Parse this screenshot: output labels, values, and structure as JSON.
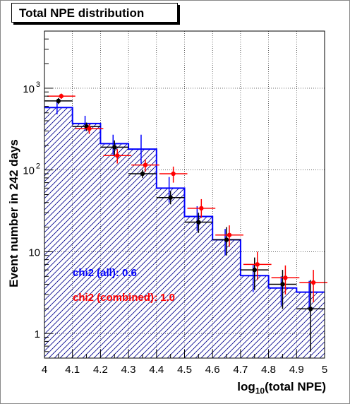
{
  "chart_data": {
    "type": "histogram",
    "title": "Total NPE distribution",
    "xlabel_prefix": "log",
    "xlabel_sub": "10",
    "xlabel_suffix": "(total NPE)",
    "ylabel": "Event number in 242 days",
    "xlim": [
      4,
      5
    ],
    "ylim": [
      0.5,
      5000
    ],
    "yscale": "log",
    "grid": true,
    "bin_edges": [
      4.0,
      4.1,
      4.2,
      4.3,
      4.4,
      4.5,
      4.6,
      4.7,
      4.8,
      4.9,
      5.0
    ],
    "xtick_labels": [
      "4",
      "4.1",
      "4.2",
      "4.3",
      "4.4",
      "4.5",
      "4.6",
      "4.7",
      "4.8",
      "4.9",
      "5"
    ],
    "ytick_labels": [
      {
        "value": 1,
        "label": "1"
      },
      {
        "value": 10,
        "label": "10"
      },
      {
        "value": 100,
        "label": "10",
        "exp": "2"
      },
      {
        "value": 1000,
        "label": "10",
        "exp": "3"
      }
    ],
    "series": [
      {
        "style": "hatched-fill",
        "color": "#00008b",
        "values": [
          580,
          370,
          210,
          180,
          60,
          27,
          14,
          5.1,
          3.6,
          3.2
        ]
      },
      {
        "style": "blue-step",
        "color": "#0000ff",
        "values": [
          580,
          370,
          210,
          180,
          60,
          27,
          14,
          5.1,
          3.6,
          3.2
        ],
        "yerr_low": [
          480,
          300,
          150,
          120,
          40,
          18,
          9,
          3.2,
          2.2,
          2.0
        ],
        "yerr_high": [
          680,
          460,
          270,
          270,
          82,
          36,
          19,
          7.0,
          5.0,
          4.4
        ],
        "err_x": [
          4.045,
          4.145,
          4.245,
          4.345,
          4.445,
          4.545,
          4.645,
          4.745,
          4.845,
          4.945
        ]
      },
      {
        "style": "points",
        "color": "#000000",
        "x": [
          4.05,
          4.15,
          4.25,
          4.35,
          4.45,
          4.55,
          4.65,
          4.75,
          4.85,
          4.95
        ],
        "values": [
          700,
          340,
          190,
          90,
          46,
          23,
          14,
          6,
          4,
          2
        ],
        "yerr_low": [
          640,
          300,
          150,
          80,
          38,
          17,
          9,
          3.4,
          2.0,
          0.6
        ],
        "yerr_high": [
          760,
          380,
          230,
          100,
          55,
          30,
          20,
          8.5,
          6.0,
          4.5
        ]
      },
      {
        "style": "points",
        "color": "#ff0000",
        "x": [
          4.06,
          4.16,
          4.26,
          4.36,
          4.46,
          4.56,
          4.66,
          4.76,
          4.86,
          4.96
        ],
        "values": [
          800,
          320,
          150,
          115,
          90,
          34,
          16,
          7,
          4.8,
          4.2
        ],
        "yerr_low": [
          740,
          275,
          120,
          95,
          70,
          26,
          11.5,
          4.5,
          3.0,
          2.4
        ],
        "yerr_high": [
          860,
          365,
          180,
          135,
          110,
          44,
          21,
          10,
          6.8,
          6.0
        ]
      }
    ],
    "annotations": [
      {
        "text": "chi2 (all): 0.6",
        "color": "#0000ff"
      },
      {
        "text": "chi2 (combined): 1.0",
        "color": "#ff0000"
      }
    ]
  }
}
